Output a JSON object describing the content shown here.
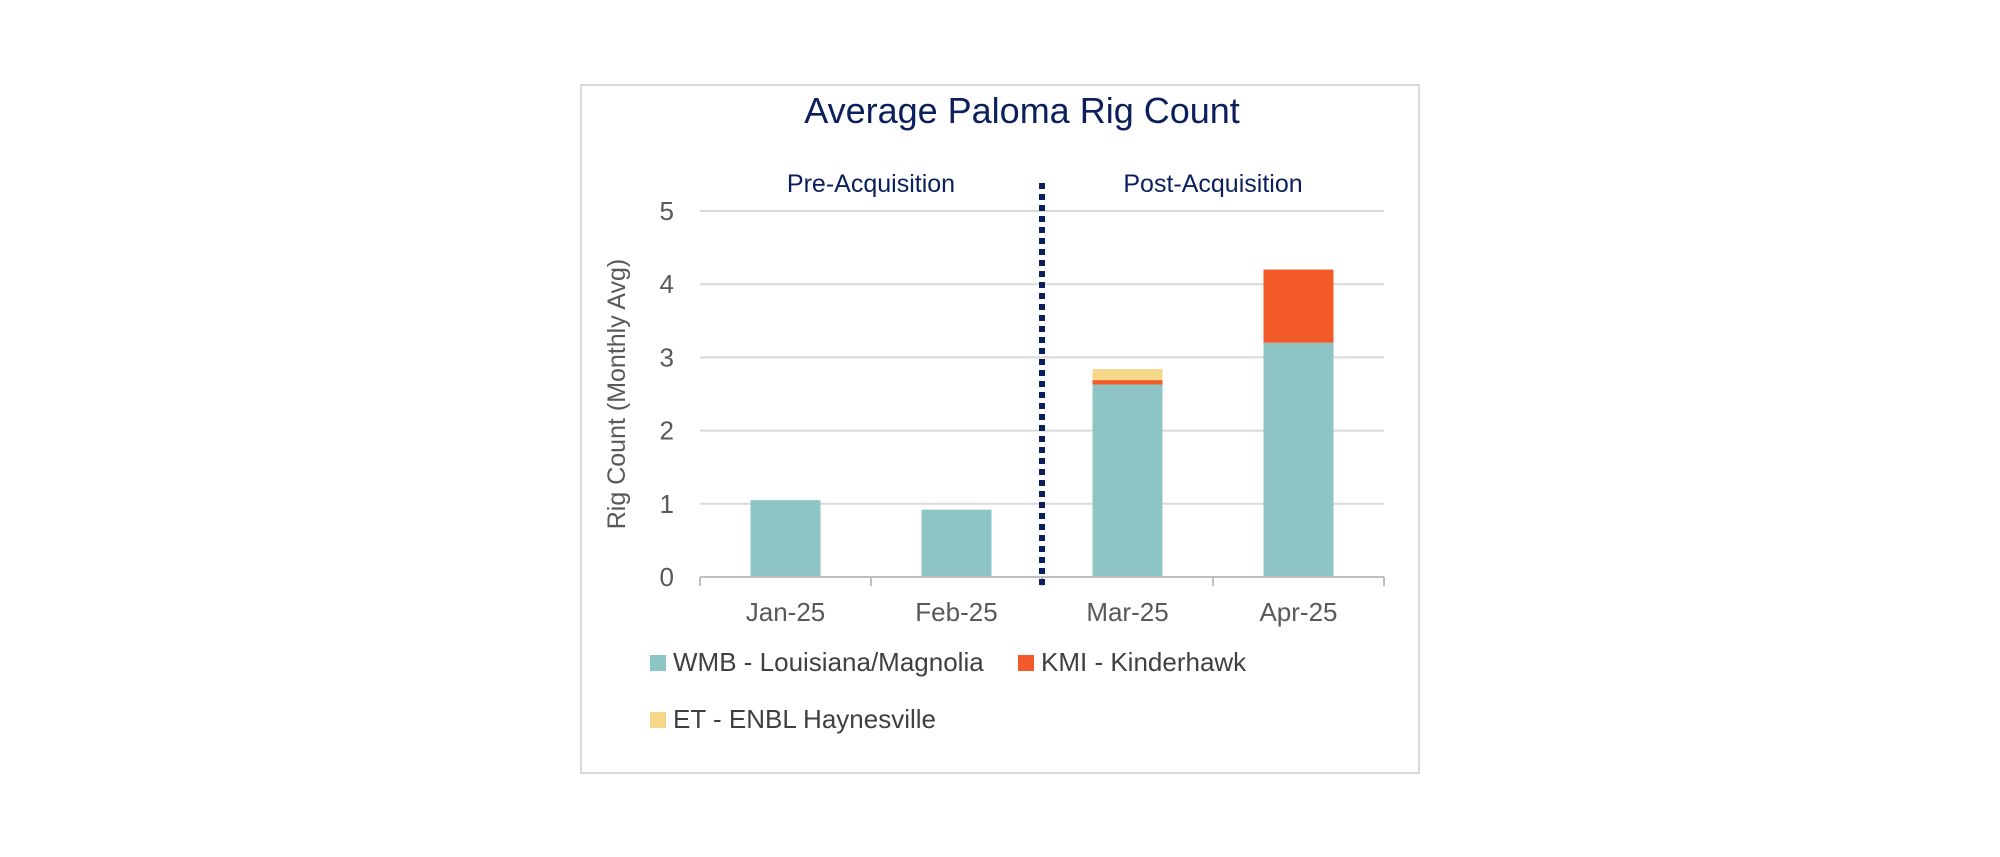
{
  "chart_data": {
    "type": "bar",
    "stacked": true,
    "title": "Average Paloma Rig Count",
    "ylabel": "Rig Count (Monthly Avg)",
    "xlabel": "",
    "categories": [
      "Jan-25",
      "Feb-25",
      "Mar-25",
      "Apr-25"
    ],
    "ylim": [
      0,
      5
    ],
    "yticks": [
      0,
      1,
      2,
      3,
      4,
      5
    ],
    "grid": true,
    "legend_position": "bottom",
    "series": [
      {
        "name": "WMB - Louisiana/Magnolia",
        "color": "#8dc5c5",
        "values": [
          1.05,
          0.92,
          2.63,
          3.2
        ]
      },
      {
        "name": "KMI - Kinderhawk",
        "color": "#f25a29",
        "values": [
          0,
          0,
          0.06,
          1.0
        ]
      },
      {
        "name": "ET - ENBL Haynesville",
        "color": "#f5d78a",
        "values": [
          0,
          0,
          0.15,
          0
        ]
      }
    ],
    "annotations": {
      "pre_label": "Pre-Acquisition",
      "post_label": "Post-Acquisition",
      "divider_between": [
        "Feb-25",
        "Mar-25"
      ],
      "divider_color": "#0b1f5c"
    }
  }
}
